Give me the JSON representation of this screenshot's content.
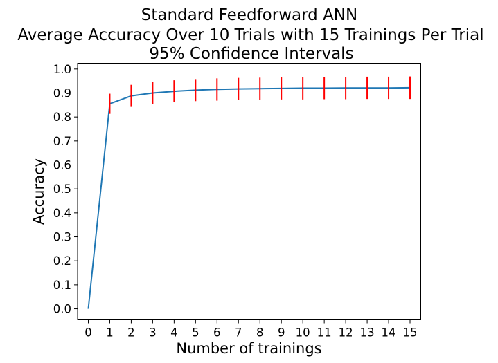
{
  "chart_data": {
    "type": "line",
    "title": [
      "Standard Feedforward ANN",
      "Average Accuracy Over 10 Trials with 15 Trainings Per Trial",
      "95% Confidence Intervals"
    ],
    "xlabel": "Number of trainings",
    "ylabel": "Accuracy",
    "xlim": [
      -0.5,
      15.5
    ],
    "ylim": [
      -0.046,
      1.024
    ],
    "xticks": [
      0,
      1,
      2,
      3,
      4,
      5,
      6,
      7,
      8,
      9,
      10,
      11,
      12,
      13,
      14,
      15
    ],
    "yticks": [
      0.0,
      0.1,
      0.2,
      0.3,
      0.4,
      0.5,
      0.6,
      0.7,
      0.8,
      0.9,
      1.0
    ],
    "ytick_labels": [
      "0.0",
      "0.1",
      "0.2",
      "0.3",
      "0.4",
      "0.5",
      "0.6",
      "0.7",
      "0.8",
      "0.9",
      "1.0"
    ],
    "grid": false,
    "series": [
      {
        "color": "#1f77b4",
        "x": [
          0,
          1,
          2,
          3,
          4,
          5,
          6,
          7,
          8,
          9,
          10,
          11,
          12,
          13,
          14,
          15
        ],
        "y": [
          0.0,
          0.855,
          0.888,
          0.9,
          0.907,
          0.912,
          0.915,
          0.917,
          0.918,
          0.919,
          0.92,
          0.92,
          0.921,
          0.921,
          0.921,
          0.922
        ]
      }
    ],
    "error_bars": {
      "color": "#ff0000",
      "x": [
        1,
        2,
        3,
        4,
        5,
        6,
        7,
        8,
        9,
        10,
        11,
        12,
        13,
        14,
        15
      ],
      "lower": [
        0.813,
        0.842,
        0.854,
        0.861,
        0.866,
        0.868,
        0.871,
        0.872,
        0.873,
        0.873,
        0.874,
        0.874,
        0.875,
        0.875,
        0.875
      ],
      "upper": [
        0.897,
        0.934,
        0.946,
        0.953,
        0.958,
        0.961,
        0.963,
        0.964,
        0.965,
        0.966,
        0.967,
        0.967,
        0.968,
        0.968,
        0.969
      ]
    }
  }
}
